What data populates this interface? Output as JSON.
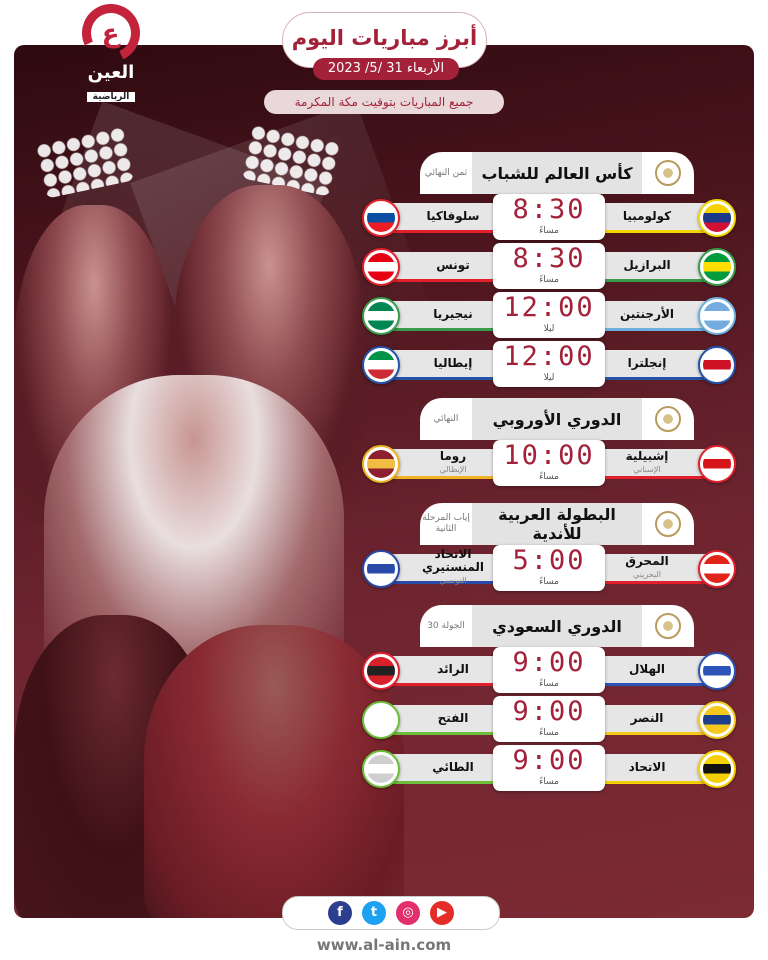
{
  "header": {
    "logo_main": "العين",
    "logo_sub": "الرياضية",
    "title": "أبرز مباريات اليوم",
    "date": "الأربعاء 31 /5/ 2023",
    "timezone_note": "جميع المباريات بتوقيت مكة المكرمة"
  },
  "sections": [
    {
      "title": "كأس العالم للشباب",
      "round": "ثمن النهائي",
      "matches": [
        {
          "home": "كولومبيا",
          "home_colors": [
            "#f7d100",
            "#1d3a8a",
            "#d21034"
          ],
          "away": "سلوفاكيا",
          "away_colors": [
            "#ffffff",
            "#0b4ea2",
            "#ee1c25"
          ],
          "time": "8:30",
          "period": "مساءً"
        },
        {
          "home": "البرازيل",
          "home_colors": [
            "#009c3b",
            "#ffdf00",
            "#009c3b"
          ],
          "away": "تونس",
          "away_colors": [
            "#e70013",
            "#ffffff",
            "#e70013"
          ],
          "time": "8:30",
          "period": "مساءً"
        },
        {
          "home": "الأرجنتين",
          "home_colors": [
            "#74acdf",
            "#ffffff",
            "#74acdf"
          ],
          "away": "نيجيريا",
          "away_colors": [
            "#008751",
            "#ffffff",
            "#008751"
          ],
          "time": "12:00",
          "period": "ليلا"
        },
        {
          "home": "إنجلترا",
          "home_colors": [
            "#ffffff",
            "#ce1124",
            "#ffffff"
          ],
          "away": "إيطاليا",
          "away_colors": [
            "#009246",
            "#ffffff",
            "#ce2b37"
          ],
          "time": "12:00",
          "period": "ليلا"
        }
      ]
    },
    {
      "title": "الدوري الأوروبي",
      "round": "النهائي",
      "matches": [
        {
          "home": "إشبيلية",
          "home_sub": "الإسباني",
          "home_colors": [
            "#ffffff",
            "#d7141a",
            "#ffffff"
          ],
          "away": "روما",
          "away_sub": "الإيطالي",
          "away_colors": [
            "#8e1f2f",
            "#f0bc42",
            "#8e1f2f"
          ],
          "time": "10:00",
          "period": "مساءً"
        }
      ]
    },
    {
      "title": "البطولة العربية للأندية",
      "round": "إياب المرحلة الثانية",
      "matches": [
        {
          "home": "المحرق",
          "home_sub": "البحريني",
          "home_colors": [
            "#e2231a",
            "#ffffff",
            "#e2231a"
          ],
          "away": "الاتحاد المنستيري",
          "away_sub": "التونسي",
          "away_colors": [
            "#ffffff",
            "#2a4aa8",
            "#ffffff"
          ],
          "time": "5:00",
          "period": "مساءً"
        }
      ]
    },
    {
      "title": "الدوري السعودي",
      "round": "الجولة 30",
      "matches": [
        {
          "home": "الهلال",
          "home_colors": [
            "#ffffff",
            "#2c54b8",
            "#ffffff"
          ],
          "away": "الرائد",
          "away_colors": [
            "#d6202a",
            "#222222",
            "#d6202a"
          ],
          "time": "9:00",
          "period": "مساءً"
        },
        {
          "home": "النصر",
          "home_colors": [
            "#f4c81d",
            "#1b3f8b",
            "#f4c81d"
          ],
          "away": "الفتح",
          "away_colors": [
            "#ffffff",
            "#ffffff",
            "#ffffff"
          ],
          "time": "9:00",
          "period": "مساءً"
        },
        {
          "home": "الاتحاد",
          "home_colors": [
            "#f5d000",
            "#111111",
            "#f5d000"
          ],
          "away": "الطائي",
          "away_colors": [
            "#cfcfcf",
            "#ffffff",
            "#cfcfcf"
          ],
          "time": "9:00",
          "period": "مساءً"
        }
      ]
    }
  ],
  "underline_colors": [
    [
      "#f3d500",
      "#e2202c"
    ],
    [
      "#3a9b4a",
      "#e2202c"
    ],
    [
      "#6cb0e0",
      "#3a9b4a"
    ],
    [
      "#2453a8",
      "#2453a8"
    ],
    [
      "#e2202c",
      "#f0b323"
    ],
    [
      "#e2202c",
      "#2a4aa8"
    ],
    [
      "#2c54b8",
      "#e2202c"
    ],
    [
      "#f4c81d",
      "#6cbf3a"
    ],
    [
      "#f4d000",
      "#6cbf3a"
    ]
  ],
  "footer": {
    "socials": [
      {
        "icon": "facebook-icon",
        "glyph": "f",
        "color": "#2c3f8f"
      },
      {
        "icon": "twitter-icon",
        "glyph": "t",
        "color": "#1da1f2"
      },
      {
        "icon": "instagram-icon",
        "glyph": "◎",
        "color": "#e1306c"
      },
      {
        "icon": "youtube-icon",
        "glyph": "▶",
        "color": "#e52d27"
      }
    ],
    "url": "www.al-ain.com"
  },
  "colors": {
    "accent": "#a3223a",
    "panel": "#5a1a22"
  }
}
